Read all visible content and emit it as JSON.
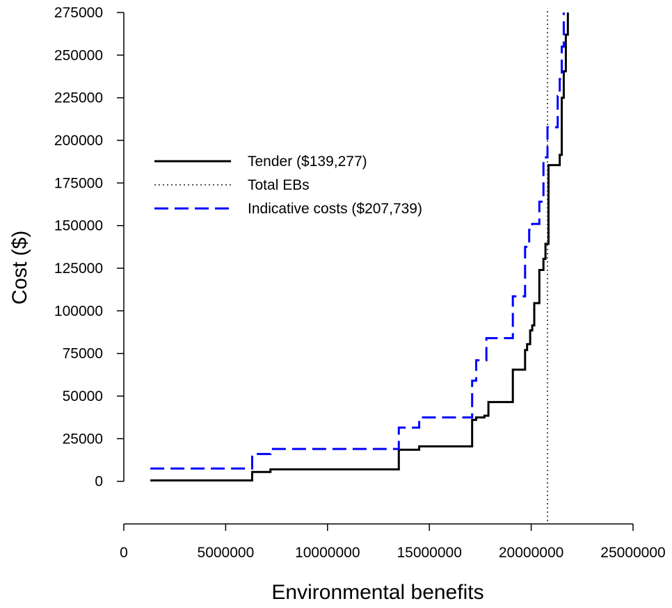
{
  "chart_data": {
    "type": "line",
    "title": "",
    "xlabel": "Environmental benefits",
    "ylabel": "Cost ($)",
    "xlim": [
      0,
      25000000
    ],
    "ylim": [
      -25000,
      275000
    ],
    "x_ticks": [
      0,
      5000000,
      10000000,
      15000000,
      20000000,
      25000000
    ],
    "x_tick_labels": [
      "0",
      "5000000",
      "10000000",
      "15000000",
      "20000000",
      "25000000"
    ],
    "y_ticks": [
      0,
      25000,
      50000,
      75000,
      100000,
      125000,
      150000,
      175000,
      200000,
      225000,
      250000,
      275000
    ],
    "y_tick_labels": [
      "0",
      "25000",
      "50000",
      "75000",
      "100000",
      "125000",
      "150000",
      "175000",
      "200000",
      "225000",
      "250000",
      "275000"
    ],
    "grid": false,
    "legend_position": "left-upper",
    "vline": {
      "x": 20800000,
      "style": "dotted",
      "color": "#555555"
    },
    "series": [
      {
        "name": "Tender ($139,277)",
        "style": "solid",
        "color": "#000000",
        "x": [
          1300000,
          6300000,
          6300000,
          7200000,
          7200000,
          13500000,
          13500000,
          14500000,
          14500000,
          17100000,
          17100000,
          17300000,
          17300000,
          17700000,
          17700000,
          17900000,
          17900000,
          19100000,
          19100000,
          19700000,
          19700000,
          19800000,
          19800000,
          19950000,
          19950000,
          20050000,
          20050000,
          20150000,
          20150000,
          20400000,
          20400000,
          20600000,
          20600000,
          20700000,
          20700000,
          20850000,
          20850000,
          21400000,
          21400000,
          21500000,
          21500000,
          21600000,
          21600000,
          21700000,
          21700000,
          21800000,
          21800000
        ],
        "y": [
          500,
          500,
          5500,
          5500,
          7000,
          7000,
          18500,
          18500,
          20500,
          20500,
          36000,
          36000,
          37500,
          37500,
          38500,
          38500,
          46500,
          46500,
          65500,
          65500,
          77000,
          77000,
          80500,
          80500,
          88500,
          88500,
          91500,
          91500,
          104500,
          104500,
          124000,
          124000,
          130500,
          130500,
          139300,
          139300,
          185500,
          185500,
          191500,
          191500,
          225000,
          225000,
          240500,
          240500,
          262000,
          262000,
          275000
        ]
      },
      {
        "name": "Indicative costs ($207,739)",
        "style": "dashed",
        "color": "#0000ff",
        "x": [
          1300000,
          6300000,
          6300000,
          7200000,
          7200000,
          13500000,
          13500000,
          14500000,
          14500000,
          17100000,
          17100000,
          17300000,
          17300000,
          17800000,
          17800000,
          19100000,
          19100000,
          19700000,
          19700000,
          19900000,
          19900000,
          20050000,
          20050000,
          20400000,
          20400000,
          20600000,
          20600000,
          20800000,
          20800000,
          21300000,
          21300000,
          21400000,
          21400000,
          21500000,
          21500000,
          21600000,
          21600000
        ],
        "y": [
          7500,
          7500,
          16000,
          16000,
          19000,
          19000,
          31500,
          31500,
          37500,
          37500,
          59000,
          59000,
          71000,
          71000,
          84000,
          84000,
          108500,
          108500,
          137500,
          137500,
          147500,
          147500,
          151000,
          151000,
          164000,
          164000,
          190000,
          190000,
          207700,
          207700,
          226000,
          226000,
          236000,
          236000,
          255000,
          255000,
          275000
        ]
      }
    ],
    "legend": [
      {
        "label": "Tender ($139,277)",
        "style": "solid",
        "color": "#000000"
      },
      {
        "label": "Total EBs",
        "style": "dotted",
        "color": "#555555"
      },
      {
        "label": "Indicative costs ($207,739)",
        "style": "dashed",
        "color": "#0000ff"
      }
    ]
  }
}
